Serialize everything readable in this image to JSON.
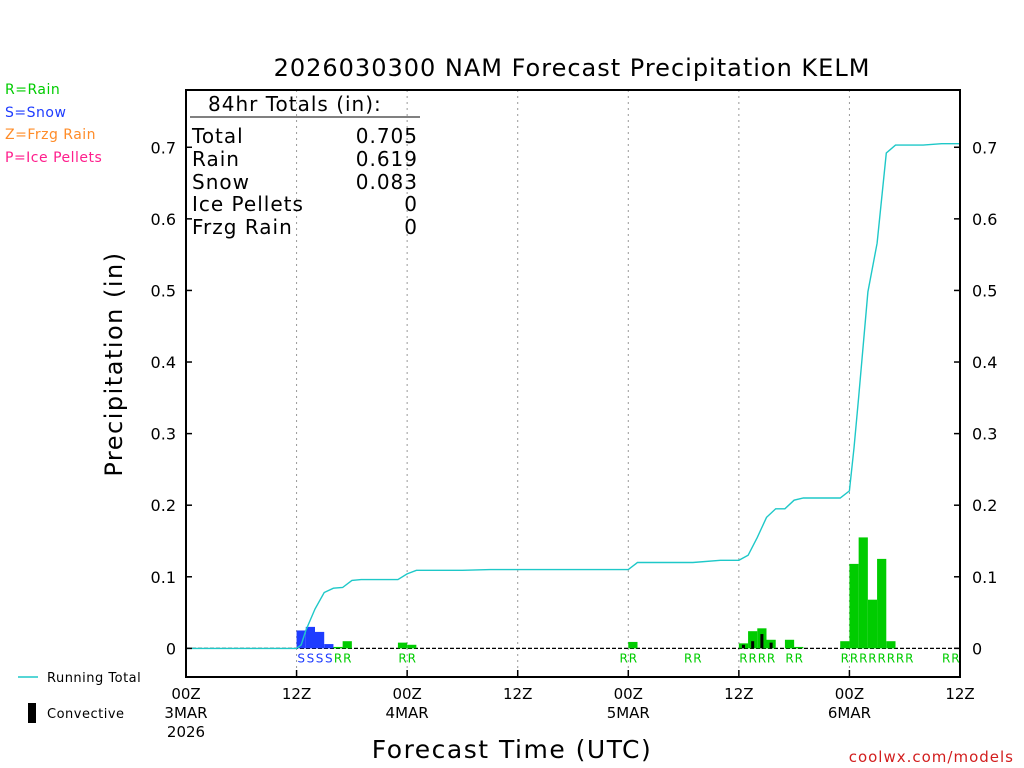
{
  "chart_data": {
    "type": "bar",
    "title": "2026030300 NAM Forecast Precipitation KELM",
    "ylabel": "Precipitation (in)",
    "xlabel": "Forecast Time (UTC)",
    "ylim": [
      -0.04,
      0.78
    ],
    "xlim_hours": [
      0,
      84
    ],
    "y_ticks": [
      0,
      0.1,
      0.2,
      0.3,
      0.4,
      0.5,
      0.6,
      0.7
    ],
    "x_ticks": [
      {
        "hour": 0,
        "lines": [
          "00Z",
          "3MAR",
          "2026"
        ]
      },
      {
        "hour": 12,
        "lines": [
          "12Z"
        ]
      },
      {
        "hour": 24,
        "lines": [
          "00Z",
          "4MAR"
        ]
      },
      {
        "hour": 36,
        "lines": [
          "12Z"
        ]
      },
      {
        "hour": 48,
        "lines": [
          "00Z",
          "5MAR"
        ]
      },
      {
        "hour": 60,
        "lines": [
          "12Z"
        ]
      },
      {
        "hour": 72,
        "lines": [
          "00Z",
          "6MAR"
        ]
      },
      {
        "hour": 84,
        "lines": [
          "12Z"
        ]
      }
    ],
    "grid_vertical_hours": [
      12,
      24,
      36,
      48,
      60,
      72
    ],
    "totals_box": {
      "header": "84hr Totals (in):",
      "rows": [
        {
          "label": "Total",
          "value": "0.705"
        },
        {
          "label": "Rain",
          "value": "0.619"
        },
        {
          "label": "Snow",
          "value": "0.083"
        },
        {
          "label": "Ice Pellets",
          "value": "0"
        },
        {
          "label": "Frzg Rain",
          "value": "0"
        }
      ]
    },
    "type_legend": [
      {
        "text": "R=Rain",
        "color": "#00cc00"
      },
      {
        "text": "S=Snow",
        "color": "#1e3cff"
      },
      {
        "text": "Z=Frzg Rain",
        "color": "#ff8c28"
      },
      {
        "text": "P=Ice Pellets",
        "color": "#ff1e8c"
      }
    ],
    "series_legend": {
      "running_total": "Running Total",
      "convective": "Convective"
    },
    "colors": {
      "rain": "#00cc00",
      "snow": "#1e3cff",
      "running_total": "#1ec8c8",
      "convective": "#000000"
    },
    "bars": [
      {
        "hour": 13,
        "value": 0.025,
        "type": "snow"
      },
      {
        "hour": 14,
        "value": 0.03,
        "type": "snow"
      },
      {
        "hour": 15,
        "value": 0.023,
        "type": "snow"
      },
      {
        "hour": 16,
        "value": 0.006,
        "type": "snow"
      },
      {
        "hour": 17,
        "value": 0.002,
        "type": "rain"
      },
      {
        "hour": 18,
        "value": 0.01,
        "type": "rain"
      },
      {
        "hour": 24,
        "value": 0.008,
        "type": "rain"
      },
      {
        "hour": 25,
        "value": 0.005,
        "type": "rain"
      },
      {
        "hour": 49,
        "value": 0.009,
        "type": "rain"
      },
      {
        "hour": 61,
        "value": 0.007,
        "type": "rain"
      },
      {
        "hour": 62,
        "value": 0.024,
        "type": "rain"
      },
      {
        "hour": 63,
        "value": 0.028,
        "type": "rain"
      },
      {
        "hour": 64,
        "value": 0.012,
        "type": "rain"
      },
      {
        "hour": 66,
        "value": 0.012,
        "type": "rain"
      },
      {
        "hour": 67,
        "value": 0.002,
        "type": "rain"
      },
      {
        "hour": 72,
        "value": 0.01,
        "type": "rain"
      },
      {
        "hour": 73,
        "value": 0.118,
        "type": "rain"
      },
      {
        "hour": 74,
        "value": 0.155,
        "type": "rain"
      },
      {
        "hour": 75,
        "value": 0.068,
        "type": "rain"
      },
      {
        "hour": 76,
        "value": 0.125,
        "type": "rain"
      },
      {
        "hour": 77,
        "value": 0.01,
        "type": "rain"
      }
    ],
    "convective": [
      {
        "hour": 61,
        "value": 0.005
      },
      {
        "hour": 62,
        "value": 0.01
      },
      {
        "hour": 63,
        "value": 0.02
      },
      {
        "hour": 64,
        "value": 0.008
      }
    ],
    "running_total": [
      [
        0,
        0
      ],
      [
        12,
        0
      ],
      [
        12.5,
        0.005
      ],
      [
        13,
        0.025
      ],
      [
        14,
        0.055
      ],
      [
        15,
        0.078
      ],
      [
        16,
        0.084
      ],
      [
        17,
        0.085
      ],
      [
        18,
        0.095
      ],
      [
        19,
        0.096
      ],
      [
        23,
        0.096
      ],
      [
        24,
        0.104
      ],
      [
        25,
        0.109
      ],
      [
        30,
        0.109
      ],
      [
        33,
        0.11
      ],
      [
        40,
        0.11
      ],
      [
        45,
        0.11
      ],
      [
        48,
        0.11
      ],
      [
        49,
        0.12
      ],
      [
        55,
        0.12
      ],
      [
        58,
        0.123
      ],
      [
        60,
        0.123
      ],
      [
        61,
        0.13
      ],
      [
        62,
        0.155
      ],
      [
        63,
        0.183
      ],
      [
        64,
        0.195
      ],
      [
        65,
        0.195
      ],
      [
        66,
        0.207
      ],
      [
        67,
        0.21
      ],
      [
        71,
        0.21
      ],
      [
        72,
        0.22
      ],
      [
        72.5,
        0.28
      ],
      [
        73,
        0.35
      ],
      [
        74,
        0.498
      ],
      [
        75,
        0.566
      ],
      [
        76,
        0.692
      ],
      [
        77,
        0.703
      ],
      [
        80,
        0.703
      ],
      [
        82,
        0.705
      ],
      [
        84,
        0.705
      ]
    ],
    "type_marks": [
      {
        "hour": 13,
        "letter": "S"
      },
      {
        "hour": 14,
        "letter": "S"
      },
      {
        "hour": 15,
        "letter": "S"
      },
      {
        "hour": 16,
        "letter": "S"
      },
      {
        "hour": 17,
        "letter": "R"
      },
      {
        "hour": 18,
        "letter": "R"
      },
      {
        "hour": 24,
        "letter": "R"
      },
      {
        "hour": 25,
        "letter": "R"
      },
      {
        "hour": 48,
        "letter": "R"
      },
      {
        "hour": 49,
        "letter": "R"
      },
      {
        "hour": 55,
        "letter": "R"
      },
      {
        "hour": 56,
        "letter": "R"
      },
      {
        "hour": 61,
        "letter": "R"
      },
      {
        "hour": 62,
        "letter": "R"
      },
      {
        "hour": 63,
        "letter": "R"
      },
      {
        "hour": 64,
        "letter": "R"
      },
      {
        "hour": 66,
        "letter": "R"
      },
      {
        "hour": 67,
        "letter": "R"
      },
      {
        "hour": 72,
        "letter": "R"
      },
      {
        "hour": 73,
        "letter": "R"
      },
      {
        "hour": 74,
        "letter": "R"
      },
      {
        "hour": 75,
        "letter": "R"
      },
      {
        "hour": 76,
        "letter": "R"
      },
      {
        "hour": 77,
        "letter": "R"
      },
      {
        "hour": 78,
        "letter": "R"
      },
      {
        "hour": 79,
        "letter": "R"
      },
      {
        "hour": 83,
        "letter": "R"
      },
      {
        "hour": 84,
        "letter": "R"
      }
    ],
    "credit": "coolwx.com/models"
  }
}
